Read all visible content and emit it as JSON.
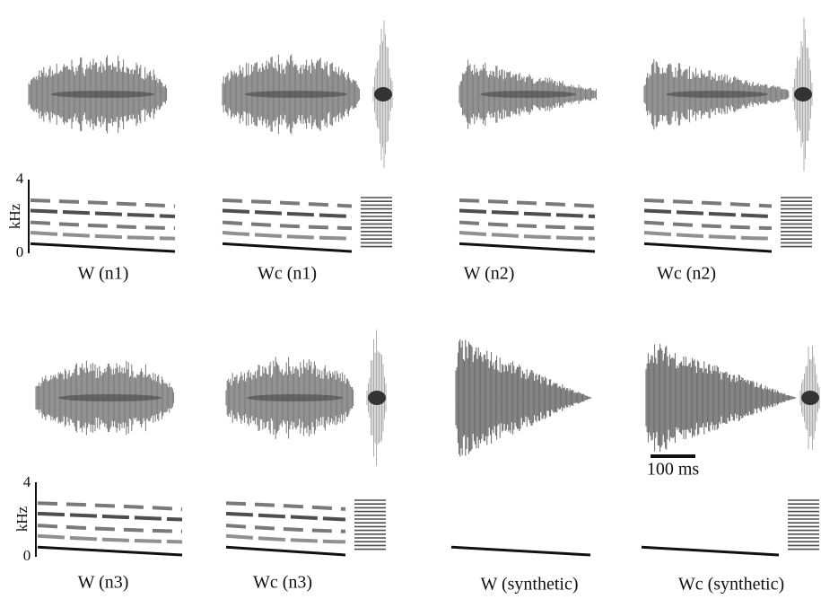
{
  "panels": [
    {
      "label": "W (n1)"
    },
    {
      "label": "Wc (n1)"
    },
    {
      "label": "W (n2)"
    },
    {
      "label": "Wc (n2)"
    },
    {
      "label": "W (n3)"
    },
    {
      "label": "Wc (n3)"
    },
    {
      "label": "W (synthetic)"
    },
    {
      "label": "Wc (synthetic)"
    }
  ],
  "frequency_axes": [
    {
      "max": 4,
      "min": 0,
      "unit": "kHz"
    },
    {
      "max": 4,
      "min": 0,
      "unit": "kHz"
    }
  ],
  "scale_bar": "100 ms"
}
